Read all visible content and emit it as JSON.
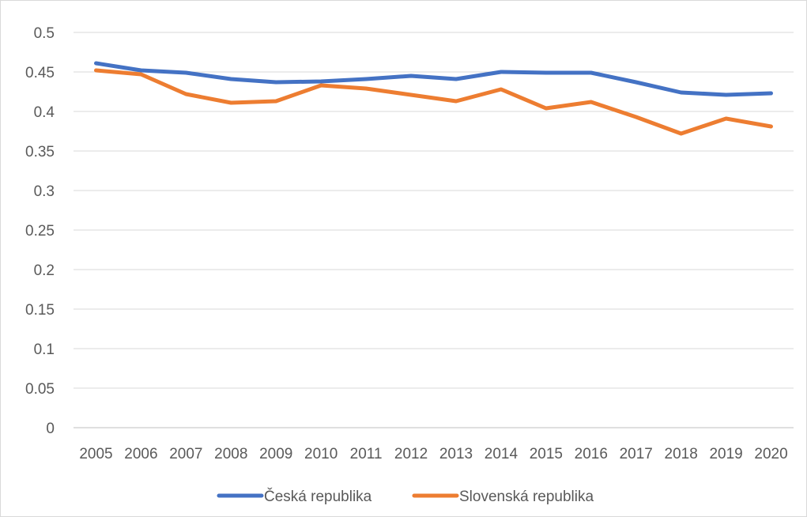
{
  "chart_data": {
    "type": "line",
    "title": "",
    "xlabel": "",
    "ylabel": "",
    "x": [
      "2005",
      "2006",
      "2007",
      "2008",
      "2009",
      "2010",
      "2011",
      "2012",
      "2013",
      "2014",
      "2015",
      "2016",
      "2017",
      "2018",
      "2019",
      "2020"
    ],
    "ylim": [
      0,
      0.5
    ],
    "y_ticks": [
      "0",
      "0.05",
      "0.1",
      "0.15",
      "0.2",
      "0.25",
      "0.3",
      "0.35",
      "0.4",
      "0.45",
      "0.5"
    ],
    "grid": "horizontal",
    "legend_position": "bottom",
    "series": [
      {
        "name": "Česká republika",
        "color": "#4472C4",
        "values": [
          0.461,
          0.452,
          0.449,
          0.441,
          0.437,
          0.438,
          0.441,
          0.445,
          0.441,
          0.45,
          0.449,
          0.449,
          0.437,
          0.424,
          0.421,
          0.423
        ]
      },
      {
        "name": "Slovenská republika",
        "color": "#ED7D31",
        "values": [
          0.452,
          0.447,
          0.422,
          0.411,
          0.413,
          0.433,
          0.429,
          0.421,
          0.413,
          0.428,
          0.404,
          0.412,
          0.393,
          0.372,
          0.391,
          0.381
        ]
      }
    ]
  }
}
